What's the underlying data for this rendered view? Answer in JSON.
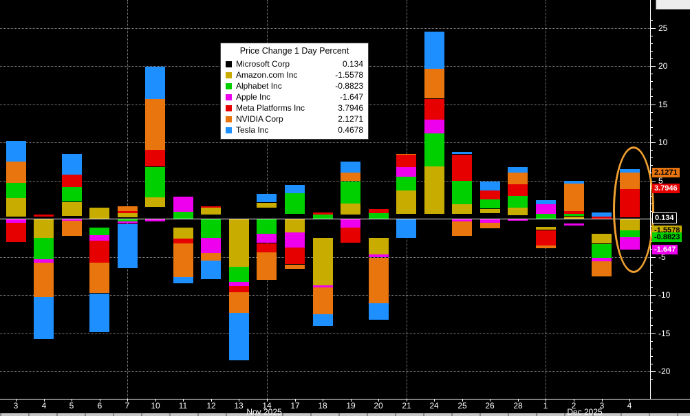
{
  "chart_data": {
    "type": "bar",
    "stacked": true,
    "title": "Price Change 1 Day Percent",
    "xlabel": "",
    "ylabel": "",
    "ylim": [
      -20.5,
      26
    ],
    "yticks": [
      -20,
      -15,
      -10,
      -5,
      0,
      5,
      10,
      15,
      20,
      25
    ],
    "grid": "dotted",
    "legend_position": "top-center-floating",
    "categories": [
      "3",
      "4",
      "5",
      "6",
      "7",
      "10",
      "11",
      "12",
      "13",
      "14",
      "17",
      "18",
      "19",
      "20",
      "21",
      "24",
      "25",
      "26",
      "28",
      "1",
      "2",
      "3",
      "4"
    ],
    "month_labels": [
      {
        "text": "Nov 2025",
        "at_index": 8.9
      },
      {
        "text": "Dec 2025",
        "at_index": 20.4
      }
    ],
    "vgrid_at_indices": [
      4,
      9,
      14,
      19
    ],
    "series": [
      {
        "name": "Microsoft Corp",
        "slug": "microsoft",
        "color": "#000000",
        "legend_value": "0.134",
        "values": [
          0.3,
          0.2,
          0.4,
          -1.2,
          0.2,
          1.5,
          -1.2,
          0.5,
          1.2,
          1.5,
          0.6,
          -2.5,
          0.6,
          -2.5,
          0.6,
          0.6,
          0.6,
          0.8,
          0.4,
          -1.1,
          -0.6,
          -2.0,
          0.134
        ]
      },
      {
        "name": "Amazon.com Inc",
        "slug": "amazon",
        "color": "#c9ac00",
        "legend_value": "-1.5578",
        "values": [
          2.4,
          -2.5,
          1.8,
          1.4,
          0.5,
          1.3,
          -1.4,
          0.9,
          -6.3,
          0.6,
          -1.8,
          -6.2,
          1.4,
          -2.2,
          3.1,
          6.3,
          1.3,
          0.5,
          1.1,
          -0.4,
          0.3,
          -1.3,
          -1.5578
        ]
      },
      {
        "name": "Alphabet Inc",
        "slug": "alphabet",
        "color": "#00d000",
        "legend_value": "-0.8823",
        "values": [
          2.0,
          -2.8,
          2.0,
          -1.0,
          -0.4,
          4.0,
          0.9,
          -2.5,
          -2.0,
          -2.0,
          2.7,
          0.5,
          2.9,
          0.8,
          1.8,
          4.3,
          3.1,
          1.2,
          1.5,
          0.6,
          0.3,
          -1.8,
          -0.8823
        ]
      },
      {
        "name": "Apple Inc",
        "slug": "apple",
        "color": "#ee00ee",
        "legend_value": "-1.647",
        "values": [
          -0.5,
          -0.5,
          -0.3,
          -0.7,
          -0.3,
          -0.4,
          2.0,
          -2.0,
          -0.5,
          -1.2,
          -2.0,
          -0.3,
          -1.2,
          -0.4,
          1.3,
          1.8,
          -0.4,
          -0.5,
          -0.3,
          1.3,
          -0.3,
          -0.5,
          -1.647
        ]
      },
      {
        "name": "Meta Platforms Inc",
        "slug": "meta",
        "color": "#e60000",
        "legend_value": "3.7946",
        "values": [
          -2.5,
          0.3,
          1.6,
          -2.9,
          0.3,
          2.2,
          -0.6,
          0.2,
          -0.8,
          -1.2,
          -2.2,
          0.3,
          -2.0,
          0.5,
          1.6,
          2.7,
          3.4,
          1.2,
          1.5,
          -2.0,
          0.4,
          0.3,
          3.7946
        ]
      },
      {
        "name": "NVIDIA Corp",
        "slug": "nvidia",
        "color": "#e8750e",
        "legend_value": "2.1271",
        "values": [
          2.8,
          -4.5,
          -2.0,
          -4.0,
          0.6,
          6.7,
          -4.5,
          -1.0,
          -2.7,
          -3.6,
          -0.5,
          -3.5,
          1.2,
          -6.0,
          0.1,
          3.9,
          -1.9,
          -0.7,
          1.6,
          -0.4,
          3.6,
          -2.0,
          2.1271
        ]
      },
      {
        "name": "Tesla Inc",
        "slug": "tesla",
        "color": "#1e8fff",
        "legend_value": "0.4678",
        "values": [
          2.7,
          -5.5,
          2.7,
          -5.0,
          -5.8,
          4.2,
          -0.8,
          -2.4,
          -6.2,
          1.1,
          1.1,
          -1.5,
          1.4,
          -2.2,
          -2.5,
          4.9,
          0.3,
          1.2,
          0.7,
          0.5,
          0.4,
          0.5,
          0.4678
        ]
      }
    ],
    "right_value_labels": [
      {
        "text": "2.1271",
        "bg": "#e8750e",
        "fg": "#000000",
        "anchor": 6.0557
      },
      {
        "text": "3.7946",
        "bg": "#e60000",
        "fg": "#ffffff",
        "anchor": 3.9286
      },
      {
        "text": "0.134",
        "bg": "#000000",
        "fg": "#ffffff",
        "anchor": 0.134,
        "border": "#ffffff"
      },
      {
        "text": "-1.5578",
        "bg": "#c9ac00",
        "fg": "#000000",
        "anchor": -1.5578
      },
      {
        "text": "-0.8823",
        "bg": "#00d000",
        "fg": "#000000",
        "anchor": -2.4401
      },
      {
        "text": "-1.647",
        "bg": "#ee00ee",
        "fg": "#ffffff",
        "anchor": -4.0871
      }
    ],
    "annotation": {
      "type": "ellipse",
      "color": "#f0a132",
      "target": "last-bar-dec-4"
    }
  },
  "colors": {
    "background": "#000000",
    "axis": "#ffffff",
    "grid": "#8c8c8c",
    "zero_line": "#ffffff"
  }
}
